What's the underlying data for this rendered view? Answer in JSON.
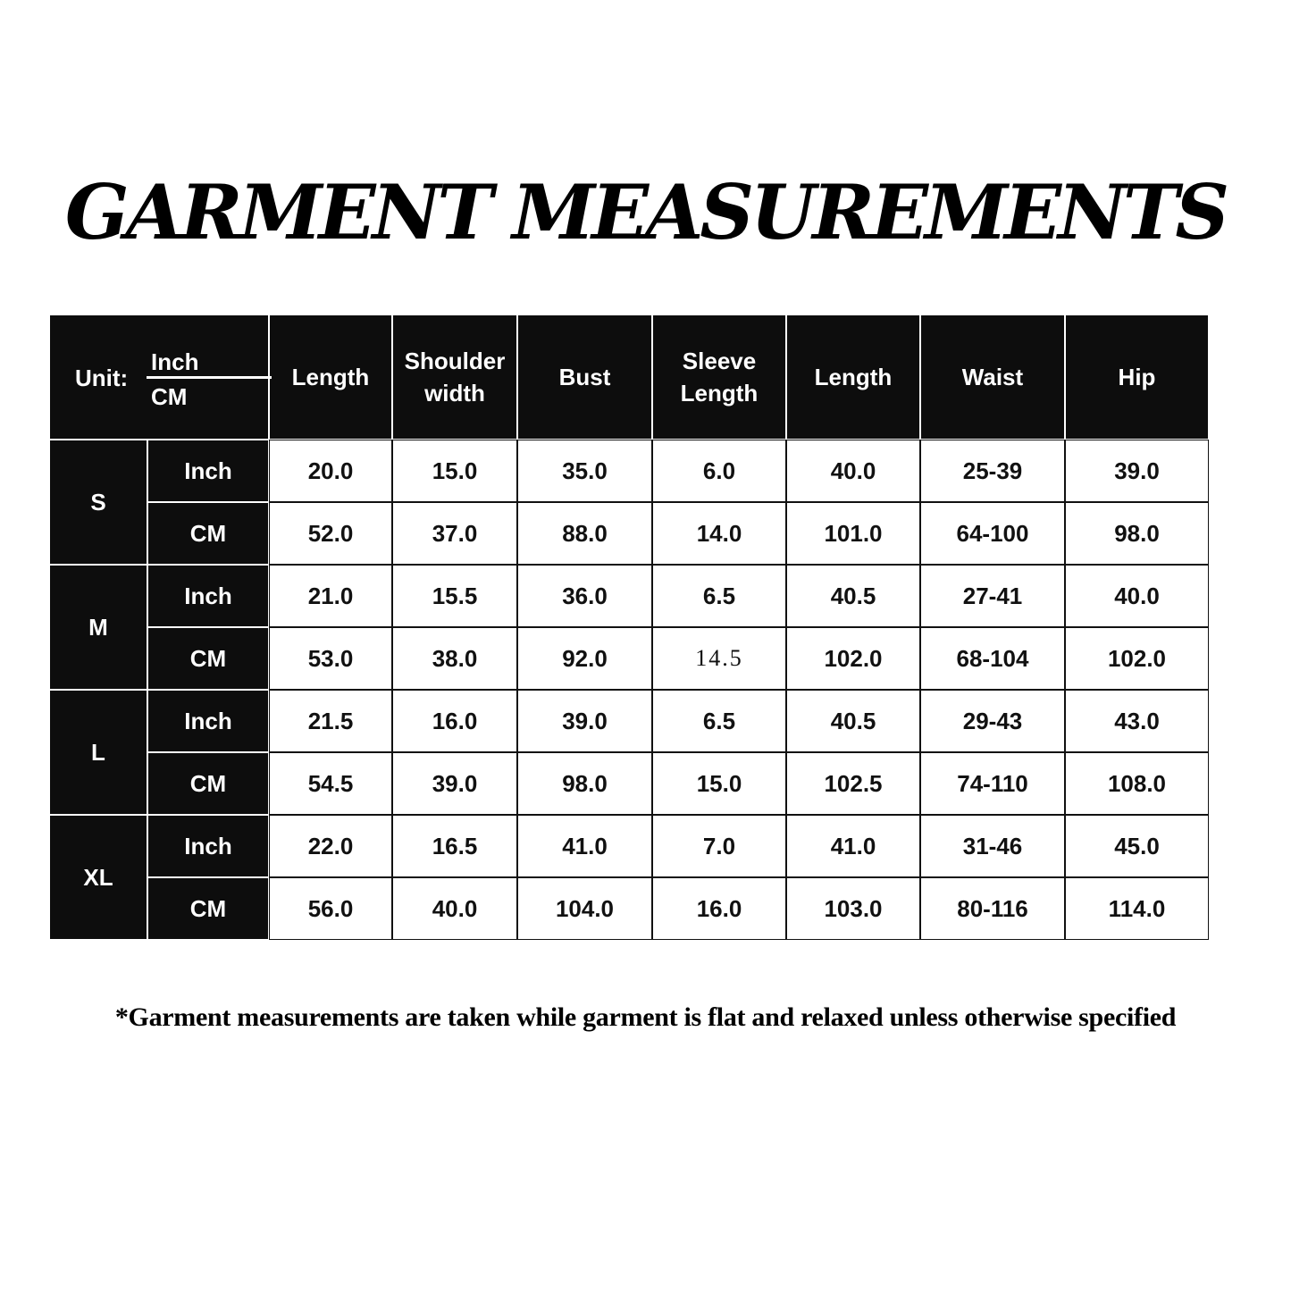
{
  "title": "GARMENT MEASUREMENTS",
  "table": {
    "unit_label": "Unit:",
    "unit_top": "Inch",
    "unit_bottom": "CM",
    "headers": [
      "Length",
      "Shoulder width",
      "Bust",
      "Sleeve Length",
      "Length",
      "Waist",
      "Hip"
    ],
    "sizes": [
      {
        "size": "S",
        "rows": [
          {
            "unit": "Inch",
            "values": [
              "20.0",
              "15.0",
              "35.0",
              "6.0",
              "40.0",
              "25-39",
              "39.0"
            ]
          },
          {
            "unit": "CM",
            "values": [
              "52.0",
              "37.0",
              "88.0",
              "14.0",
              "101.0",
              "64-100",
              "98.0"
            ]
          }
        ]
      },
      {
        "size": "M",
        "rows": [
          {
            "unit": "Inch",
            "values": [
              "21.0",
              "15.5",
              "36.0",
              "6.5",
              "40.5",
              "27-41",
              "40.0"
            ]
          },
          {
            "unit": "CM",
            "values": [
              "53.0",
              "38.0",
              "92.0",
              "14.5",
              "102.0",
              "68-104",
              "102.0"
            ]
          }
        ]
      },
      {
        "size": "L",
        "rows": [
          {
            "unit": "Inch",
            "values": [
              "21.5",
              "16.0",
              "39.0",
              "6.5",
              "40.5",
              "29-43",
              "43.0"
            ]
          },
          {
            "unit": "CM",
            "values": [
              "54.5",
              "39.0",
              "98.0",
              "15.0",
              "102.5",
              "74-110",
              "108.0"
            ]
          }
        ]
      },
      {
        "size": "XL",
        "rows": [
          {
            "unit": "Inch",
            "values": [
              "22.0",
              "16.5",
              "41.0",
              "7.0",
              "41.0",
              "31-46",
              "45.0"
            ]
          },
          {
            "unit": "CM",
            "values": [
              "56.0",
              "40.0",
              "104.0",
              "16.0",
              "103.0",
              "80-116",
              "114.0"
            ]
          }
        ]
      }
    ]
  },
  "footnote": "*Garment measurements are taken while garment is flat and relaxed unless otherwise specified"
}
